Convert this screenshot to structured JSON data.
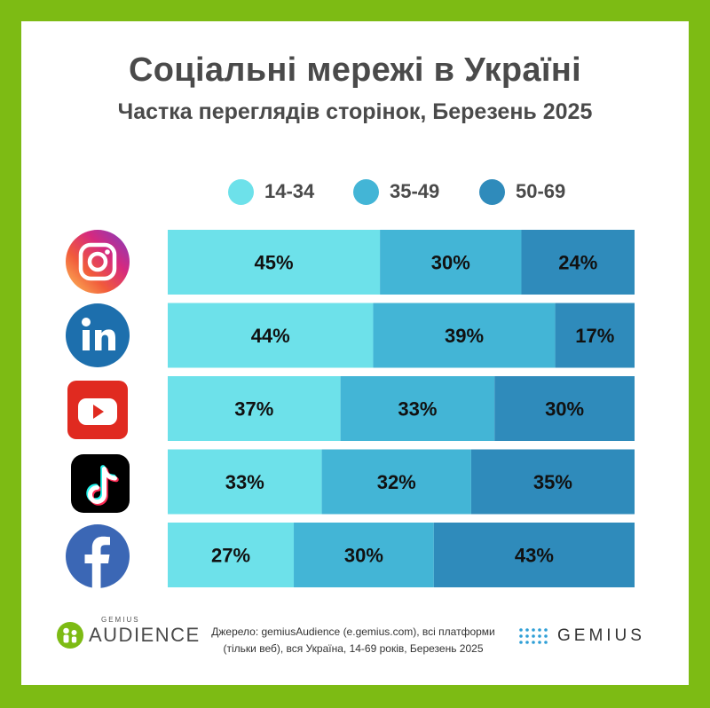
{
  "title": "Соціальні мережі в Україні",
  "subtitle": "Частка переглядів сторінок, Березень 2025",
  "colors": {
    "frame": "#7dbb14",
    "age_14_34": "#6de1ea",
    "age_35_49": "#43b5d6",
    "age_50_69": "#2f8bbb"
  },
  "platform_icons": [
    "instagram-icon",
    "linkedin-icon",
    "youtube-icon",
    "tiktok-icon",
    "facebook-icon"
  ],
  "chart_data": {
    "type": "bar",
    "orientation": "horizontal",
    "stacked": true,
    "normalized": true,
    "title": "Соціальні мережі в Україні",
    "subtitle": "Частка переглядів сторінок, Березень 2025",
    "categories": [
      "",
      "",
      "",
      "",
      ""
    ],
    "series": [
      {
        "name": "14-34",
        "color": "#6de1ea",
        "values": [
          45,
          44,
          37,
          33,
          27
        ]
      },
      {
        "name": "35-49",
        "color": "#43b5d6",
        "values": [
          30,
          39,
          33,
          32,
          30
        ]
      },
      {
        "name": "50-69",
        "color": "#2f8bbb",
        "values": [
          24,
          17,
          30,
          35,
          43
        ]
      }
    ],
    "value_suffix": "%",
    "legend": "top",
    "grid": false
  },
  "footer": {
    "source_line1": "Джерело: gemiusAudience (e.gemius.com), всі платформи",
    "source_line2": "(тільки веб), вся Україна, 14-69 років, Березень 2025",
    "audience_logo_small": "GEMIUS",
    "audience_logo_word": "AUDIENCE",
    "gemius_logo_word": "GEMIUS"
  }
}
